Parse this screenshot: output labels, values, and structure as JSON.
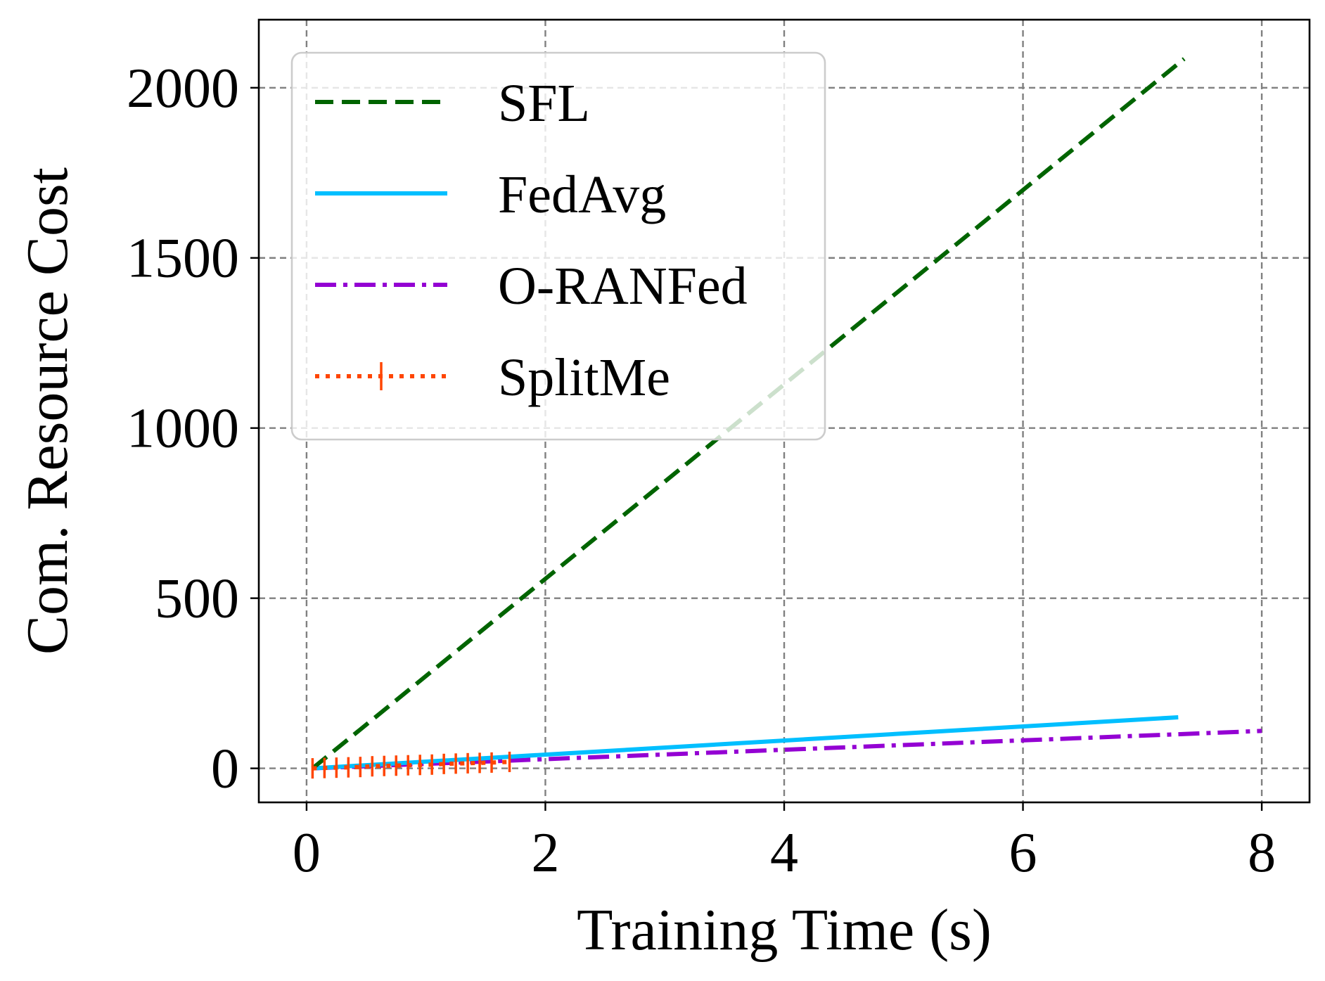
{
  "chart_data": {
    "type": "line",
    "xlabel": "Training Time (s)",
    "ylabel": "Com. Resource Cost",
    "xlim": [
      -0.4,
      8.4
    ],
    "ylim": [
      -100,
      2200
    ],
    "xticks": [
      0,
      2,
      4,
      6,
      8
    ],
    "yticks": [
      0,
      500,
      1000,
      1500,
      2000
    ],
    "grid": true,
    "legend_position": "top-left",
    "series": [
      {
        "name": "SFL",
        "color": "#006400",
        "style": "dashed",
        "x": [
          0.05,
          7.35
        ],
        "y": [
          0,
          2085
        ]
      },
      {
        "name": "FedAvg",
        "color": "#00BFFF",
        "style": "solid",
        "x": [
          0.05,
          7.3
        ],
        "y": [
          0,
          150
        ]
      },
      {
        "name": "O-RANFed",
        "color": "#9400D3",
        "style": "dashdot",
        "x": [
          0.05,
          8.0
        ],
        "y": [
          0,
          110
        ]
      },
      {
        "name": "SplitMe",
        "color": "#FF4500",
        "style": "dotted-errorbar",
        "x": [
          0.05,
          0.15,
          0.25,
          0.35,
          0.45,
          0.55,
          0.65,
          0.75,
          0.85,
          0.95,
          1.05,
          1.15,
          1.25,
          1.35,
          1.45,
          1.55,
          1.7
        ],
        "y": [
          0,
          1,
          2,
          3,
          4,
          6,
          7,
          8,
          9,
          10,
          11,
          13,
          14,
          15,
          16,
          17,
          19
        ],
        "err": 30
      }
    ]
  }
}
